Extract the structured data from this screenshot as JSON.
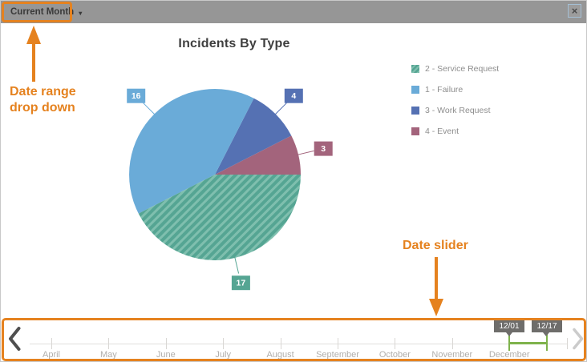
{
  "titlebar": {
    "dropdown": {
      "label": "Current Month",
      "caret": "▾"
    },
    "close": "×"
  },
  "chart_data": {
    "type": "pie",
    "title": "Incidents By Type",
    "total": 40,
    "value_labels_shown": true,
    "legend_position": "right",
    "slices": [
      {
        "label": "2 - Service Request",
        "value": 17,
        "color": "#55a593",
        "hatched": true,
        "hatch_color": "#7fbfae"
      },
      {
        "label": "1 - Failure",
        "value": 16,
        "color": "#6aabd8",
        "hatched": false
      },
      {
        "label": "3 - Work Request",
        "value": 4,
        "color": "#5571b3",
        "hatched": false
      },
      {
        "label": "4 - Event",
        "value": 3,
        "color": "#a3647c",
        "hatched": false
      }
    ]
  },
  "annotations": {
    "color": "#e5821f",
    "dropdown_note_line1": "Date range",
    "dropdown_note_line2": "drop down",
    "slider_note": "Date slider"
  },
  "slider": {
    "months": [
      "April",
      "May",
      "June",
      "July",
      "August",
      "September",
      "October",
      "November",
      "December"
    ],
    "selection": {
      "start": "12/01",
      "end": "12/17",
      "color": "#7eb24b"
    }
  }
}
